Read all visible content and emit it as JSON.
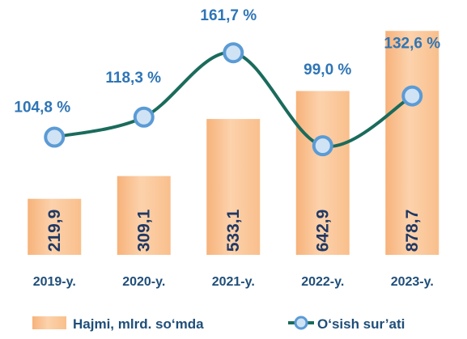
{
  "chart_data": {
    "type": "bar",
    "categories": [
      "2019-y.",
      "2020-y.",
      "2021-y.",
      "2022-y.",
      "2023-y."
    ],
    "series": [
      {
        "name": "Hajmi, mlrd. so‘mda",
        "type": "bar",
        "values": [
          219.9,
          309.1,
          533.1,
          642.9,
          878.7
        ],
        "labels": [
          "219,9",
          "309,1",
          "533,1",
          "642,9",
          "878,7"
        ],
        "color": "#fbc694"
      },
      {
        "name": "O‘sish sur’ati",
        "type": "line",
        "values": [
          104.8,
          118.3,
          161.7,
          99.0,
          132.6
        ],
        "labels": [
          "104,8 %",
          "118,3 %",
          "161,7 %",
          "99,0 %",
          "132,6 %"
        ],
        "color": "#1a6b5c",
        "marker_color": "#5b9bd5"
      }
    ],
    "title": "",
    "xlabel": "",
    "ylabel": "",
    "ylim_bar": [
      0,
      1000
    ],
    "ylim_line": [
      80,
      170
    ],
    "grid": false,
    "legend": "bottom"
  }
}
